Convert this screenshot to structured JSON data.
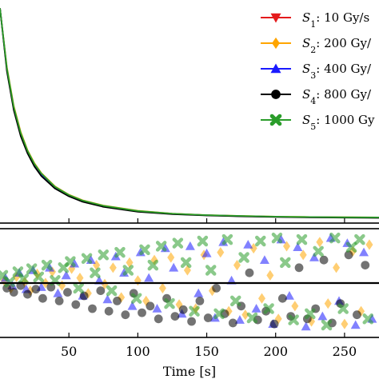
{
  "chart_data": [
    {
      "type": "line",
      "panel": "top",
      "xlim": [
        0,
        275
      ],
      "ylim": [
        0,
        1.0
      ],
      "title": "",
      "xlabel": "",
      "ylabel": "",
      "legend_position": "top-right",
      "series": [
        {
          "name_symbol": "S",
          "name_sub": "1",
          "name_rest": ": 10 Gy/s",
          "color": "#e41a1c",
          "marker": "triangle-down",
          "x": [
            0,
            5,
            10,
            15,
            20,
            25,
            30,
            40,
            50,
            60,
            75,
            100,
            125,
            150,
            175,
            200,
            225,
            250,
            275
          ],
          "y": [
            0.98,
            0.7,
            0.52,
            0.4,
            0.32,
            0.26,
            0.215,
            0.155,
            0.118,
            0.092,
            0.068,
            0.044,
            0.032,
            0.025,
            0.021,
            0.018,
            0.016,
            0.015,
            0.014
          ]
        },
        {
          "name_symbol": "S",
          "name_sub": "2",
          "name_rest": ": 200 Gy/",
          "color": "#ffa500",
          "marker": "diamond",
          "x": [
            0,
            5,
            10,
            15,
            20,
            25,
            30,
            40,
            50,
            60,
            75,
            100,
            125,
            150,
            175,
            200,
            225,
            250,
            275
          ],
          "y": [
            0.98,
            0.71,
            0.53,
            0.41,
            0.325,
            0.265,
            0.22,
            0.158,
            0.12,
            0.094,
            0.07,
            0.046,
            0.033,
            0.026,
            0.022,
            0.019,
            0.017,
            0.016,
            0.015
          ]
        },
        {
          "name_symbol": "S",
          "name_sub": "3",
          "name_rest": ": 400 Gy/",
          "color": "#1a1aff",
          "marker": "triangle-up",
          "x": [
            0,
            5,
            10,
            15,
            20,
            25,
            30,
            40,
            50,
            60,
            75,
            100,
            125,
            150,
            175,
            200,
            225,
            250,
            275
          ],
          "y": [
            0.98,
            0.7,
            0.52,
            0.4,
            0.318,
            0.258,
            0.213,
            0.153,
            0.116,
            0.09,
            0.066,
            0.043,
            0.031,
            0.025,
            0.021,
            0.018,
            0.016,
            0.015,
            0.014
          ]
        },
        {
          "name_symbol": "S",
          "name_sub": "4",
          "name_rest": ": 800 Gy/",
          "color": "#000000",
          "marker": "circle",
          "x": [
            0,
            5,
            10,
            15,
            20,
            25,
            30,
            40,
            50,
            60,
            75,
            100,
            125,
            150,
            175,
            200,
            225,
            250,
            275
          ],
          "y": [
            0.98,
            0.69,
            0.51,
            0.39,
            0.31,
            0.25,
            0.206,
            0.148,
            0.112,
            0.087,
            0.064,
            0.041,
            0.03,
            0.024,
            0.02,
            0.017,
            0.015,
            0.014,
            0.013
          ]
        },
        {
          "name_symbol": "S",
          "name_sub": "5",
          "name_rest": ": 1000 Gy",
          "color": "#2a9d2a",
          "marker": "x",
          "x": [
            0,
            5,
            10,
            15,
            20,
            25,
            30,
            40,
            50,
            60,
            75,
            100,
            125,
            150,
            175,
            200,
            225,
            250,
            275
          ],
          "y": [
            0.98,
            0.705,
            0.525,
            0.405,
            0.322,
            0.262,
            0.218,
            0.156,
            0.119,
            0.093,
            0.069,
            0.045,
            0.033,
            0.026,
            0.022,
            0.019,
            0.017,
            0.016,
            0.015
          ]
        }
      ]
    },
    {
      "type": "scatter",
      "panel": "bottom",
      "xlim": [
        0,
        275
      ],
      "ylim": [
        -1,
        1
      ],
      "xlabel": "Time [s]",
      "ylabel": "",
      "x_ticks": [
        50,
        100,
        150,
        200,
        250
      ],
      "reference_line": 0,
      "series": [
        {
          "color": "#ffa500",
          "marker": "diamond",
          "points": [
            [
              3,
              0.05
            ],
            [
              8,
              -0.1
            ],
            [
              12,
              0.12
            ],
            [
              18,
              0.02
            ],
            [
              22,
              -0.15
            ],
            [
              27,
              0.18
            ],
            [
              33,
              0.0
            ],
            [
              38,
              0.22
            ],
            [
              45,
              -0.05
            ],
            [
              52,
              0.28
            ],
            [
              58,
              0.1
            ],
            [
              64,
              -0.2
            ],
            [
              70,
              0.35
            ],
            [
              76,
              -0.02
            ],
            [
              82,
              0.3
            ],
            [
              88,
              -0.28
            ],
            [
              94,
              0.4
            ],
            [
              100,
              0.05
            ],
            [
              106,
              -0.35
            ],
            [
              112,
              0.45
            ],
            [
              118,
              -0.1
            ],
            [
              124,
              0.5
            ],
            [
              130,
              -0.42
            ],
            [
              136,
              0.25
            ],
            [
              142,
              -0.5
            ],
            [
              148,
              0.55
            ],
            [
              154,
              -0.15
            ],
            [
              160,
              0.6
            ],
            [
              166,
              -0.55
            ],
            [
              172,
              0.35
            ],
            [
              178,
              -0.62
            ],
            [
              184,
              0.68
            ],
            [
              190,
              -0.3
            ],
            [
              196,
              0.15
            ],
            [
              202,
              -0.7
            ],
            [
              208,
              0.72
            ],
            [
              214,
              -0.45
            ],
            [
              220,
              0.55
            ],
            [
              226,
              -0.75
            ],
            [
              232,
              0.8
            ],
            [
              238,
              -0.4
            ],
            [
              244,
              0.3
            ],
            [
              250,
              -0.8
            ],
            [
              256,
              0.62
            ],
            [
              262,
              -0.55
            ],
            [
              268,
              0.75
            ]
          ]
        },
        {
          "color": "#1a1aff",
          "marker": "triangle-up",
          "points": [
            [
              4,
              0.1
            ],
            [
              9,
              -0.05
            ],
            [
              14,
              0.2
            ],
            [
              19,
              -0.12
            ],
            [
              24,
              0.25
            ],
            [
              30,
              -0.08
            ],
            [
              36,
              0.3
            ],
            [
              42,
              -0.2
            ],
            [
              48,
              0.15
            ],
            [
              54,
              0.38
            ],
            [
              60,
              -0.25
            ],
            [
              66,
              0.45
            ],
            [
              72,
              0.05
            ],
            [
              78,
              -0.32
            ],
            [
              84,
              0.52
            ],
            [
              90,
              0.2
            ],
            [
              96,
              -0.45
            ],
            [
              102,
              0.6
            ],
            [
              108,
              0.1
            ],
            [
              114,
              -0.5
            ],
            [
              120,
              0.68
            ],
            [
              126,
              0.3
            ],
            [
              132,
              -0.6
            ],
            [
              138,
              0.72
            ],
            [
              144,
              -0.2
            ],
            [
              150,
              0.58
            ],
            [
              156,
              -0.68
            ],
            [
              162,
              0.8
            ],
            [
              168,
              0.05
            ],
            [
              174,
              -0.72
            ],
            [
              180,
              0.75
            ],
            [
              186,
              -0.5
            ],
            [
              192,
              0.45
            ],
            [
              198,
              -0.8
            ],
            [
              204,
              0.85
            ],
            [
              210,
              -0.25
            ],
            [
              216,
              0.7
            ],
            [
              222,
              -0.85
            ],
            [
              228,
              0.5
            ],
            [
              234,
              -0.65
            ],
            [
              240,
              0.88
            ],
            [
              246,
              -0.35
            ],
            [
              252,
              0.78
            ],
            [
              258,
              -0.82
            ],
            [
              264,
              0.6
            ],
            [
              270,
              -0.7
            ]
          ]
        },
        {
          "color": "#000000",
          "marker": "circle",
          "points": [
            [
              5,
              -0.1
            ],
            [
              10,
              -0.18
            ],
            [
              15,
              -0.05
            ],
            [
              20,
              -0.22
            ],
            [
              26,
              -0.12
            ],
            [
              31,
              -0.3
            ],
            [
              37,
              -0.08
            ],
            [
              43,
              -0.35
            ],
            [
              49,
              -0.18
            ],
            [
              55,
              -0.42
            ],
            [
              61,
              -0.25
            ],
            [
              67,
              -0.5
            ],
            [
              73,
              -0.15
            ],
            [
              79,
              -0.55
            ],
            [
              85,
              -0.35
            ],
            [
              91,
              -0.62
            ],
            [
              97,
              -0.2
            ],
            [
              103,
              -0.58
            ],
            [
              109,
              -0.45
            ],
            [
              115,
              -0.7
            ],
            [
              121,
              -0.3
            ],
            [
              127,
              -0.65
            ],
            [
              133,
              -0.52
            ],
            [
              139,
              -0.75
            ],
            [
              145,
              -0.35
            ],
            [
              151,
              -0.68
            ],
            [
              157,
              -0.1
            ],
            [
              163,
              -0.6
            ],
            [
              169,
              -0.78
            ],
            [
              175,
              -0.45
            ],
            [
              181,
              0.2
            ],
            [
              187,
              -0.72
            ],
            [
              193,
              -0.55
            ],
            [
              199,
              -0.8
            ],
            [
              205,
              -0.3
            ],
            [
              211,
              -0.65
            ],
            [
              217,
              0.3
            ],
            [
              223,
              -0.7
            ],
            [
              229,
              -0.5
            ],
            [
              235,
              0.45
            ],
            [
              241,
              -0.78
            ],
            [
              247,
              -0.4
            ],
            [
              253,
              0.55
            ],
            [
              259,
              -0.62
            ],
            [
              265,
              0.35
            ]
          ]
        },
        {
          "color": "#2a9d2a",
          "marker": "x",
          "points": [
            [
              2,
              0.15
            ],
            [
              7,
              0.02
            ],
            [
              13,
              0.22
            ],
            [
              17,
              0.08
            ],
            [
              23,
              0.28
            ],
            [
              28,
              0.12
            ],
            [
              34,
              0.35
            ],
            [
              40,
              0.05
            ],
            [
              46,
              0.3
            ],
            [
              51,
              0.42
            ],
            [
              57,
              -0.1
            ],
            [
              63,
              0.48
            ],
            [
              69,
              0.2
            ],
            [
              75,
              0.55
            ],
            [
              81,
              -0.15
            ],
            [
              87,
              0.6
            ],
            [
              93,
              0.25
            ],
            [
              99,
              -0.3
            ],
            [
              105,
              0.65
            ],
            [
              111,
              0.35
            ],
            [
              117,
              0.72
            ],
            [
              123,
              -0.4
            ],
            [
              129,
              0.78
            ],
            [
              135,
              0.4
            ],
            [
              141,
              -0.55
            ],
            [
              147,
              0.82
            ],
            [
              153,
              0.25
            ],
            [
              159,
              -0.6
            ],
            [
              165,
              0.85
            ],
            [
              171,
              -0.35
            ],
            [
              177,
              0.5
            ],
            [
              183,
              -0.68
            ],
            [
              189,
              0.82
            ],
            [
              195,
              -0.5
            ],
            [
              201,
              0.88
            ],
            [
              207,
              0.4
            ],
            [
              213,
              -0.72
            ],
            [
              219,
              0.85
            ],
            [
              225,
              -0.6
            ],
            [
              231,
              0.62
            ],
            [
              237,
              -0.82
            ],
            [
              243,
              0.88
            ],
            [
              249,
              -0.5
            ],
            [
              255,
              0.7
            ],
            [
              261,
              0.85
            ],
            [
              267,
              -0.7
            ]
          ]
        }
      ]
    }
  ]
}
